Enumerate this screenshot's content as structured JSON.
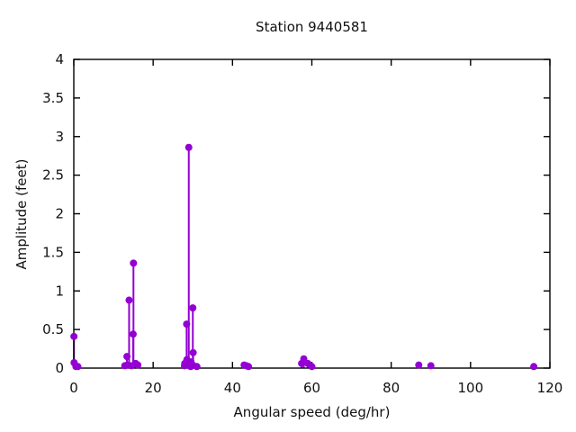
{
  "title": "Station 9440581",
  "chart_data": {
    "type": "scatter",
    "style": "impulses-with-points (stem plot)",
    "title": "Station 9440581",
    "xlabel": "Angular speed (deg/hr)",
    "ylabel": "Amplitude (feet)",
    "xlim": [
      0,
      120
    ],
    "ylim": [
      0,
      4
    ],
    "xticks": [
      0,
      20,
      40,
      60,
      80,
      100,
      120
    ],
    "yticks": [
      0,
      0.5,
      1,
      1.5,
      2,
      2.5,
      3,
      3.5,
      4
    ],
    "grid": false,
    "legend_position": "none",
    "marker_color": "#9400d3",
    "border_color": "#000000",
    "points": [
      {
        "x": 0.04,
        "y": 0.41
      },
      {
        "x": 0.08,
        "y": 0.07
      },
      {
        "x": 0.54,
        "y": 0.02
      },
      {
        "x": 1.02,
        "y": 0.02
      },
      {
        "x": 12.85,
        "y": 0.03
      },
      {
        "x": 13.4,
        "y": 0.15
      },
      {
        "x": 13.47,
        "y": 0.04
      },
      {
        "x": 13.94,
        "y": 0.88
      },
      {
        "x": 14.5,
        "y": 0.03
      },
      {
        "x": 14.96,
        "y": 0.44
      },
      {
        "x": 15.04,
        "y": 1.36
      },
      {
        "x": 15.59,
        "y": 0.06
      },
      {
        "x": 16.14,
        "y": 0.04
      },
      {
        "x": 27.9,
        "y": 0.03
      },
      {
        "x": 27.97,
        "y": 0.06
      },
      {
        "x": 28.44,
        "y": 0.57
      },
      {
        "x": 28.51,
        "y": 0.11
      },
      {
        "x": 28.98,
        "y": 2.86
      },
      {
        "x": 29.46,
        "y": 0.02
      },
      {
        "x": 29.53,
        "y": 0.08
      },
      {
        "x": 29.96,
        "y": 0.04
      },
      {
        "x": 30.0,
        "y": 0.78
      },
      {
        "x": 30.08,
        "y": 0.2
      },
      {
        "x": 31.02,
        "y": 0.02
      },
      {
        "x": 42.93,
        "y": 0.04
      },
      {
        "x": 43.48,
        "y": 0.03
      },
      {
        "x": 44.03,
        "y": 0.02
      },
      {
        "x": 57.42,
        "y": 0.06
      },
      {
        "x": 57.97,
        "y": 0.12
      },
      {
        "x": 58.98,
        "y": 0.06
      },
      {
        "x": 60.0,
        "y": 0.02
      },
      {
        "x": 86.95,
        "y": 0.04
      },
      {
        "x": 90.0,
        "y": 0.03
      },
      {
        "x": 115.94,
        "y": 0.02
      }
    ]
  }
}
